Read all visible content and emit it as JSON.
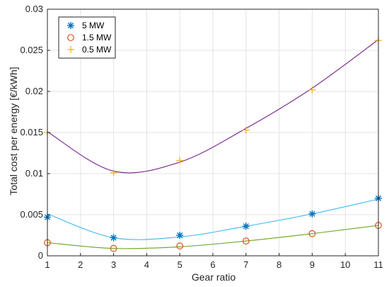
{
  "chart_data": {
    "type": "scatter",
    "title": "",
    "xlabel": "Gear ratio",
    "ylabel": "Total cost per energy [€/kWh]",
    "xlim": [
      1,
      11
    ],
    "ylim": [
      0,
      0.03
    ],
    "x_ticks": [
      1,
      2,
      3,
      4,
      5,
      6,
      7,
      8,
      9,
      10,
      11
    ],
    "y_ticks": [
      0,
      0.005,
      0.01,
      0.015,
      0.02,
      0.025,
      0.03
    ],
    "x_tick_labels": [
      "1",
      "2",
      "3",
      "4",
      "5",
      "6",
      "7",
      "8",
      "9",
      "10",
      "11"
    ],
    "y_tick_labels": [
      "0",
      "0.005",
      "0.01",
      "0.015",
      "0.02",
      "0.025",
      "0.03"
    ],
    "grid": true,
    "legend_position": "top-left",
    "x": [
      1,
      3,
      5,
      7,
      9,
      11
    ],
    "series": [
      {
        "name": "5 MW",
        "marker": "asterisk",
        "marker_color": "#0072BD",
        "curve_color": "#4DBEEE",
        "values": [
          0.0047,
          0.0022,
          0.0025,
          0.0036,
          0.0051,
          0.007
        ],
        "fit": [
          0.0051,
          0.0022,
          0.0023,
          0.0036,
          0.0051,
          0.0069
        ]
      },
      {
        "name": "1.5 MW",
        "marker": "circle",
        "marker_color": "#D95319",
        "curve_color": "#77AC30",
        "values": [
          0.0016,
          0.0009,
          0.0012,
          0.0018,
          0.0027,
          0.0037
        ],
        "fit": [
          0.0016,
          0.0009,
          0.0011,
          0.0018,
          0.0027,
          0.0037
        ]
      },
      {
        "name": "0.5 MW",
        "marker": "plus",
        "marker_color": "#EDB120",
        "curve_color": "#7E2F8E",
        "values": [
          0.015,
          0.0101,
          0.0116,
          0.0153,
          0.0202,
          0.0262
        ],
        "fit": [
          0.0151,
          0.0103,
          0.0114,
          0.0155,
          0.0204,
          0.0263
        ]
      }
    ]
  }
}
